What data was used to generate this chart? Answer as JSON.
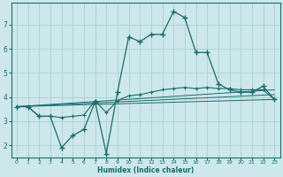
{
  "xlabel": "Humidex (Indice chaleur)",
  "ylabel": "",
  "xlim": [
    -0.5,
    23.5
  ],
  "ylim": [
    1.5,
    7.9
  ],
  "bg_color": "#cce8ea",
  "line_color": "#1a6b6b",
  "grid_color": "#aacfcf",
  "xticks": [
    0,
    1,
    2,
    3,
    4,
    5,
    6,
    7,
    8,
    9,
    10,
    11,
    12,
    13,
    14,
    15,
    16,
    17,
    18,
    19,
    20,
    21,
    22,
    23
  ],
  "yticks": [
    2,
    3,
    4,
    5,
    6,
    7
  ],
  "series": [
    {
      "x": [
        0,
        1,
        2,
        3,
        4,
        5,
        6,
        7,
        8,
        9,
        10,
        11,
        12,
        13,
        14,
        15,
        16,
        17,
        18,
        19,
        20,
        21,
        22,
        23
      ],
      "y": [
        3.6,
        3.6,
        3.2,
        3.2,
        1.9,
        2.4,
        2.65,
        3.8,
        1.65,
        4.2,
        6.5,
        6.3,
        6.6,
        6.6,
        7.55,
        7.3,
        5.85,
        5.85,
        4.55,
        4.3,
        4.2,
        4.2,
        4.45,
        3.9
      ],
      "has_markers": true
    },
    {
      "x": [
        0,
        1,
        2,
        3,
        4,
        5,
        6,
        7,
        8,
        9,
        10,
        11,
        12,
        13,
        14,
        15,
        16,
        17,
        18,
        19,
        20,
        21,
        22,
        23
      ],
      "y": [
        3.6,
        3.6,
        3.2,
        3.2,
        3.15,
        3.2,
        3.25,
        3.85,
        3.35,
        3.85,
        4.05,
        4.1,
        4.2,
        4.3,
        4.35,
        4.4,
        4.35,
        4.4,
        4.35,
        4.35,
        4.3,
        4.3,
        4.3,
        3.9
      ],
      "has_markers": true
    },
    {
      "x": [
        0,
        23
      ],
      "y": [
        3.6,
        4.3
      ],
      "has_markers": false
    },
    {
      "x": [
        0,
        23
      ],
      "y": [
        3.6,
        4.1
      ],
      "has_markers": false
    },
    {
      "x": [
        0,
        23
      ],
      "y": [
        3.6,
        3.9
      ],
      "has_markers": false
    }
  ]
}
